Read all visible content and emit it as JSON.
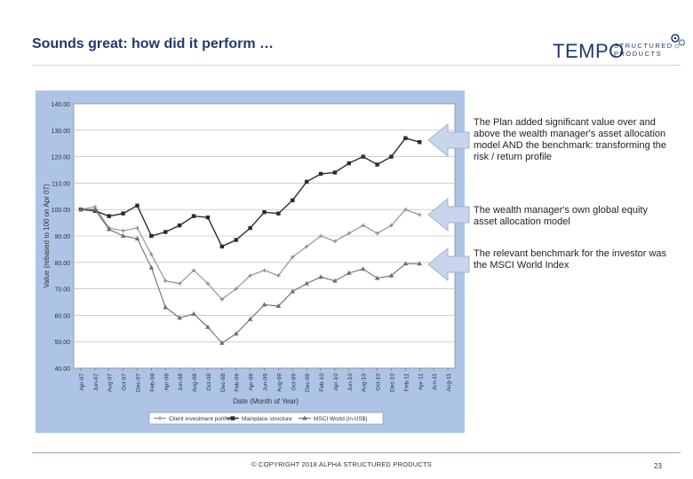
{
  "header": {
    "title": "Sounds great: how did it perform …",
    "logo_main": "TEMPO",
    "logo_sub_1": "STRUCTURED",
    "logo_sub_2": "PRODUCTS"
  },
  "notes": [
    "The Plan added significant value over and above the wealth manager's asset allocation model AND the benchmark: transforming the risk / return profile",
    "The wealth manager's own global equity asset allocation model",
    "The relevant benchmark for the investor was the MSCI World Index"
  ],
  "footer": {
    "copyright": "© COPYRIGHT 2018 ALPHA STRUCTURED PRODUCTS",
    "page": "23"
  },
  "colors": {
    "accent": "#1f3a6d",
    "chart_bg": "#adc4e7",
    "plot_bg": "#ffffff",
    "arrow_fill": "#c9d5ec"
  },
  "chart_data": {
    "type": "line",
    "title": "",
    "xlabel": "Date (Month of Year)",
    "ylabel": "Value (rebased to 100 on Apr 07)",
    "ylim": [
      40,
      140
    ],
    "yticks": [
      "40.00",
      "50.00",
      "60.00",
      "70.00",
      "80.00",
      "90.00",
      "100.00",
      "110.00",
      "120.00",
      "130.00",
      "140.00"
    ],
    "categories": [
      "Apr-07",
      "Jun-07",
      "Aug-07",
      "Oct-07",
      "Dec-07",
      "Feb-08",
      "Apr-08",
      "Jun-08",
      "Aug-08",
      "Oct-08",
      "Dec-08",
      "Feb-09",
      "Apr-09",
      "Jun-09",
      "Aug-09",
      "Oct-09",
      "Dec-09",
      "Feb-10",
      "Apr-10",
      "Jun-10",
      "Aug-10",
      "Oct-10",
      "Dec-10",
      "Feb-11",
      "Apr-11",
      "Jun-11",
      "Aug-11"
    ],
    "series": [
      {
        "name": "Client investment portfolio",
        "marker": "cross",
        "values": [
          100,
          101,
          93,
          92,
          93,
          83,
          73,
          72,
          77,
          72,
          66,
          70,
          75,
          77,
          75,
          82,
          86,
          90,
          88,
          91,
          94,
          91,
          94,
          100,
          98,
          null,
          null
        ]
      },
      {
        "name": "Mainplace structure",
        "marker": "square",
        "values": [
          100,
          99.5,
          97.5,
          98.5,
          101.5,
          90,
          91.5,
          94,
          97.5,
          97,
          86,
          88.5,
          93,
          99,
          98.5,
          103.5,
          110.5,
          113.5,
          114,
          117.5,
          120,
          117,
          120,
          127,
          125.5,
          null,
          null
        ]
      },
      {
        "name": "MSCI World (in US$)",
        "marker": "triangle",
        "values": [
          100,
          100,
          92.5,
          90,
          89,
          78,
          63,
          59,
          60.5,
          55.5,
          49.5,
          53,
          58.5,
          64,
          63.5,
          69,
          72,
          74.5,
          73,
          76,
          77.5,
          74,
          75,
          79.5,
          79.5,
          null,
          null
        ]
      }
    ]
  }
}
